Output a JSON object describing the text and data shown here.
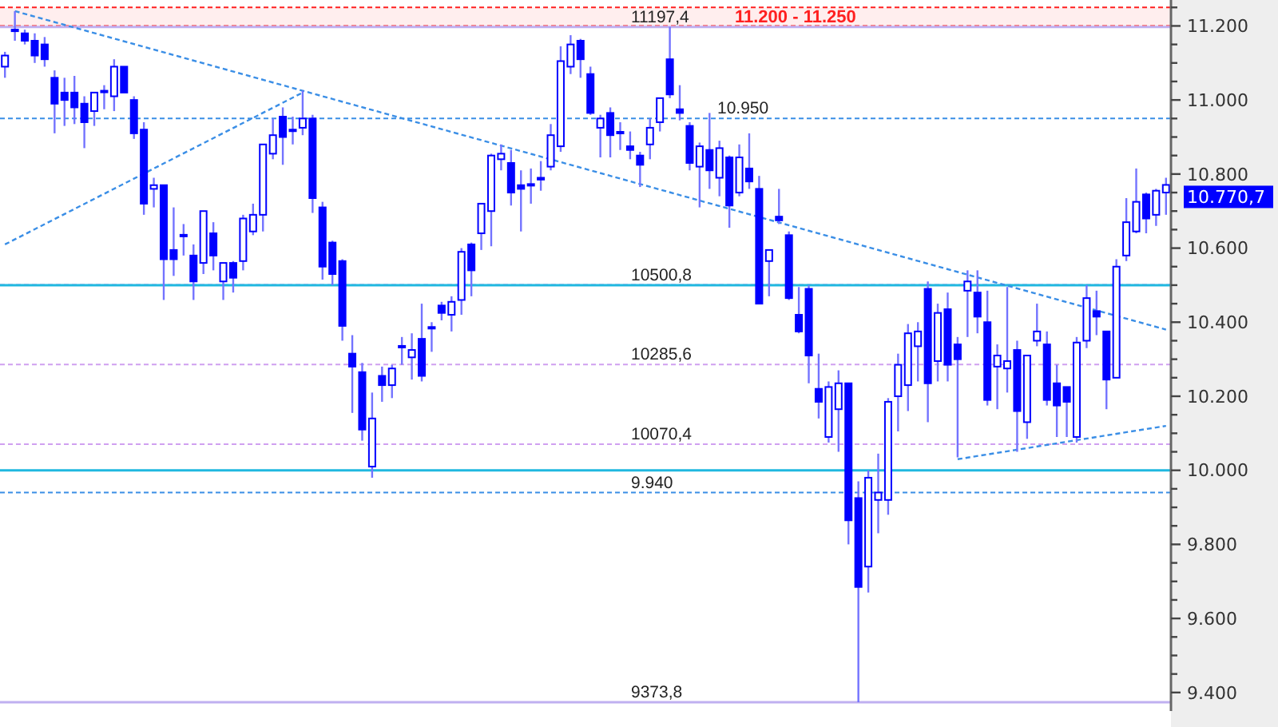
{
  "chart_data": {
    "type": "candlestick",
    "categories": [
      null,
      null,
      null,
      null,
      null,
      null,
      null,
      null,
      null,
      null,
      null,
      null,
      null,
      null,
      null,
      null,
      null,
      null,
      null,
      null,
      null,
      null,
      null,
      null,
      null,
      null,
      null,
      null,
      null,
      null,
      null,
      null,
      null,
      null,
      null,
      null,
      null,
      null,
      null,
      null,
      null,
      null,
      null,
      null,
      null,
      null,
      null,
      null,
      null,
      null,
      null,
      null,
      null,
      null,
      null,
      null,
      null,
      null,
      null,
      null,
      null,
      null,
      null,
      null,
      null,
      null,
      null,
      null,
      null,
      null,
      null,
      null,
      null,
      null,
      null,
      null,
      null,
      null,
      null,
      null,
      null,
      null,
      null,
      null,
      null,
      null,
      null,
      null,
      null,
      null,
      null,
      null,
      null,
      null,
      null,
      null,
      null,
      null,
      null,
      null,
      null,
      null,
      null,
      null,
      null,
      null,
      null,
      null,
      null,
      null,
      null,
      null,
      null,
      null,
      null,
      null,
      null,
      null
    ],
    "ohlc": [
      [
        11090,
        11130,
        11060,
        11120
      ],
      [
        11190,
        11240,
        11160,
        11190
      ],
      [
        11180,
        11190,
        11150,
        11160
      ],
      [
        11160,
        11180,
        11100,
        11120
      ],
      [
        11150,
        11170,
        11090,
        11110
      ],
      [
        11060,
        11080,
        10910,
        10990
      ],
      [
        11020,
        11060,
        10930,
        11000
      ],
      [
        11020,
        11065,
        10935,
        10980
      ],
      [
        10990,
        11010,
        10870,
        10940
      ],
      [
        10970,
        11020,
        10930,
        11020
      ],
      [
        11025,
        11040,
        10975,
        11025
      ],
      [
        11010,
        11110,
        10970,
        11090
      ],
      [
        11090,
        11090,
        11020,
        11020
      ],
      [
        11000,
        11010,
        10895,
        10910
      ],
      [
        10920,
        10940,
        10690,
        10720
      ],
      [
        10760,
        10790,
        10710,
        10770
      ],
      [
        10770,
        10770,
        10460,
        10570
      ],
      [
        10595,
        10710,
        10525,
        10570
      ],
      [
        10636,
        10665,
        10580,
        10636
      ],
      [
        10580,
        10610,
        10460,
        10510
      ],
      [
        10560,
        10700,
        10530,
        10700
      ],
      [
        10640,
        10670,
        10540,
        10580
      ],
      [
        10510,
        10560,
        10460,
        10560
      ],
      [
        10560,
        10565,
        10480,
        10520
      ],
      [
        10565,
        10690,
        10540,
        10680
      ],
      [
        10645,
        10720,
        10635,
        10690
      ],
      [
        10690,
        10880,
        10645,
        10880
      ],
      [
        10855,
        10950,
        10840,
        10905
      ],
      [
        10955,
        10980,
        10825,
        10900
      ],
      [
        10920,
        10955,
        10880,
        10920
      ],
      [
        10925,
        11025,
        10905,
        10950
      ],
      [
        10950,
        10960,
        10695,
        10735
      ],
      [
        10710,
        10725,
        10515,
        10550
      ],
      [
        10615,
        10620,
        10500,
        10530
      ],
      [
        10565,
        10570,
        10350,
        10390
      ],
      [
        10315,
        10365,
        10155,
        10280
      ],
      [
        10265,
        10290,
        10080,
        10110
      ],
      [
        10010,
        10210,
        9980,
        10140
      ],
      [
        10255,
        10280,
        10185,
        10230
      ],
      [
        10230,
        10285,
        10195,
        10275
      ],
      [
        10336,
        10360,
        10285,
        10336
      ],
      [
        10305,
        10370,
        10245,
        10325
      ],
      [
        10355,
        10450,
        10240,
        10255
      ],
      [
        10387,
        10400,
        10320,
        10387
      ],
      [
        10445,
        10455,
        10405,
        10425
      ],
      [
        10420,
        10470,
        10375,
        10455
      ],
      [
        10460,
        10600,
        10420,
        10590
      ],
      [
        10610,
        10615,
        10470,
        10540
      ],
      [
        10640,
        10720,
        10595,
        10720
      ],
      [
        10700,
        10855,
        10605,
        10850
      ],
      [
        10840,
        10880,
        10810,
        10855
      ],
      [
        10830,
        10865,
        10715,
        10750
      ],
      [
        10770,
        10810,
        10645,
        10760
      ],
      [
        10773,
        10815,
        10720,
        10773
      ],
      [
        10790,
        10835,
        10755,
        10785
      ],
      [
        10820,
        10935,
        10810,
        10905
      ],
      [
        10875,
        11145,
        10860,
        11105
      ],
      [
        11090,
        11175,
        11070,
        11150
      ],
      [
        11160,
        11165,
        11060,
        11110
      ],
      [
        11070,
        11090,
        10960,
        10965
      ],
      [
        10925,
        10960,
        10845,
        10950
      ],
      [
        10965,
        10980,
        10845,
        10905
      ],
      [
        10914,
        10940,
        10865,
        10914
      ],
      [
        10875,
        10915,
        10840,
        10865
      ],
      [
        10850,
        10860,
        10765,
        10825
      ],
      [
        10880,
        10950,
        10840,
        10925
      ],
      [
        10940,
        11005,
        10915,
        11005
      ],
      [
        11110,
        11197.4,
        11005,
        11015
      ],
      [
        10975,
        11040,
        10945,
        10965
      ],
      [
        10930,
        10940,
        10810,
        10830
      ],
      [
        10820,
        10885,
        10710,
        10875
      ],
      [
        10865,
        10965,
        10760,
        10810
      ],
      [
        10790,
        10890,
        10740,
        10870
      ],
      [
        10845,
        10850,
        10655,
        10715
      ],
      [
        10750,
        10880,
        10740,
        10845
      ],
      [
        10815,
        10910,
        10760,
        10780
      ],
      [
        10760,
        10795,
        10450,
        10450
      ],
      [
        10565,
        10595,
        10470,
        10595
      ],
      [
        10685,
        10760,
        10665,
        10675
      ],
      [
        10635,
        10645,
        10460,
        10465
      ],
      [
        10420,
        10495,
        10370,
        10375
      ],
      [
        10490,
        10500,
        10235,
        10310
      ],
      [
        10220,
        10315,
        10140,
        10185
      ],
      [
        10090,
        10240,
        10075,
        10225
      ],
      [
        10165,
        10270,
        10050,
        10235
      ],
      [
        10235,
        10235,
        9800,
        9865
      ],
      [
        9925,
        9970,
        9373.8,
        9685
      ],
      [
        9740,
        10000,
        9670,
        9980
      ],
      [
        9920,
        10045,
        9830,
        9940
      ],
      [
        9920,
        10195,
        9880,
        10185
      ],
      [
        10200,
        10315,
        10105,
        10285
      ],
      [
        10230,
        10395,
        10160,
        10370
      ],
      [
        10335,
        10400,
        10240,
        10375
      ],
      [
        10490,
        10510,
        10130,
        10235
      ],
      [
        10295,
        10450,
        10240,
        10425
      ],
      [
        10435,
        10480,
        10240,
        10285
      ],
      [
        10340,
        10360,
        10035,
        10300
      ],
      [
        10485,
        10540,
        10360,
        10510
      ],
      [
        10480,
        10540,
        10370,
        10415
      ],
      [
        10400,
        10485,
        10175,
        10190
      ],
      [
        10280,
        10340,
        10165,
        10310
      ],
      [
        10275,
        10495,
        10210,
        10295
      ],
      [
        10325,
        10350,
        10050,
        10160
      ],
      [
        10130,
        10310,
        10085,
        10310
      ],
      [
        10350,
        10450,
        10335,
        10375
      ],
      [
        10340,
        10375,
        10175,
        10190
      ],
      [
        10235,
        10285,
        10090,
        10175
      ],
      [
        10225,
        10225,
        10090,
        10185
      ],
      [
        10090,
        10360,
        10075,
        10345
      ],
      [
        10350,
        10500,
        10330,
        10465
      ],
      [
        10430,
        10485,
        10365,
        10415
      ],
      [
        10375,
        10375,
        10165,
        10245
      ],
      [
        10250,
        10570,
        10250,
        10550
      ],
      [
        10580,
        10735,
        10565,
        10670
      ],
      [
        10645,
        10815,
        10640,
        10725
      ],
      [
        10745,
        10750,
        10640,
        10680
      ],
      [
        10690,
        10760,
        10660,
        10755
      ],
      [
        10750,
        10790,
        10690,
        10770.7
      ]
    ],
    "series": [
      {
        "type": "line",
        "color": "#3a8ee6",
        "line_style": "dashed",
        "values": [
          null,
          11240,
          null,
          null,
          null,
          null,
          null,
          null,
          null,
          null,
          null,
          null,
          null,
          null,
          null,
          null,
          null,
          null,
          null,
          null,
          null,
          null,
          null,
          null,
          null,
          null,
          null,
          null,
          null,
          null,
          null,
          null,
          null,
          null,
          null,
          null,
          null,
          null,
          null,
          null,
          null,
          null,
          null,
          null,
          null,
          null,
          null,
          null,
          null,
          null,
          null,
          null,
          null,
          null,
          null,
          null,
          null,
          null,
          null,
          null,
          null,
          null,
          null,
          null,
          null,
          null,
          null,
          null,
          null,
          null,
          null,
          null,
          null,
          null,
          null,
          null,
          null,
          null,
          null,
          null,
          null,
          null,
          null,
          null,
          null,
          null,
          null,
          null,
          null,
          null,
          null,
          null,
          null,
          null,
          null,
          null,
          null,
          null,
          null,
          null,
          null,
          null,
          null,
          null,
          null,
          null,
          null,
          null,
          null,
          null,
          null,
          null,
          null,
          null,
          null,
          null,
          null,
          10380
        ]
      },
      {
        "type": "line",
        "color": "#3a8ee6",
        "line_style": "dashed",
        "values": [
          10610,
          null,
          null,
          null,
          null,
          null,
          null,
          null,
          null,
          null,
          null,
          null,
          null,
          null,
          null,
          null,
          null,
          null,
          null,
          null,
          null,
          null,
          null,
          null,
          null,
          null,
          null,
          null,
          null,
          null,
          11020,
          null,
          null,
          null,
          null,
          null,
          null,
          null,
          null,
          null,
          null,
          null,
          null,
          null,
          null,
          null,
          null,
          null,
          null,
          null,
          null,
          null,
          null,
          null,
          null,
          null,
          null,
          null,
          null,
          null,
          null,
          null,
          null,
          null,
          null,
          null,
          null,
          null,
          null,
          null,
          null,
          null,
          null,
          null,
          null,
          null,
          null,
          null,
          null,
          null,
          null,
          null,
          null,
          null,
          null,
          null,
          null,
          null,
          null,
          null,
          null,
          null,
          null,
          null,
          null,
          null,
          null,
          null,
          null,
          null,
          null,
          null,
          null,
          null,
          null,
          null,
          null,
          null,
          null,
          null,
          null,
          null,
          null,
          null,
          null,
          null,
          null,
          null
        ]
      },
      {
        "type": "line",
        "color": "#3a8ee6",
        "line_style": "dashed",
        "values": [
          null,
          null,
          null,
          null,
          null,
          null,
          null,
          null,
          null,
          null,
          null,
          null,
          null,
          null,
          null,
          null,
          null,
          null,
          null,
          null,
          null,
          null,
          null,
          null,
          null,
          null,
          null,
          null,
          null,
          null,
          null,
          null,
          null,
          null,
          null,
          null,
          null,
          null,
          null,
          null,
          null,
          null,
          null,
          null,
          null,
          null,
          null,
          null,
          null,
          null,
          null,
          null,
          null,
          null,
          null,
          null,
          null,
          null,
          null,
          null,
          null,
          null,
          null,
          null,
          null,
          null,
          null,
          null,
          null,
          null,
          null,
          null,
          null,
          null,
          null,
          null,
          null,
          null,
          null,
          null,
          null,
          null,
          null,
          null,
          null,
          null,
          null,
          null,
          null,
          null,
          null,
          null,
          null,
          null,
          null,
          null,
          10030,
          null,
          null,
          null,
          null,
          null,
          null,
          null,
          null,
          null,
          null,
          null,
          null,
          null,
          null,
          null,
          null,
          null,
          null,
          null,
          null,
          10120
        ]
      }
    ],
    "ylim": [
      9350,
      11270
    ],
    "yticks": [
      {
        "value": 9400,
        "label": "9.400"
      },
      {
        "value": 9450,
        "label": null
      },
      {
        "value": 9500,
        "label": null
      },
      {
        "value": 9550,
        "label": null
      },
      {
        "value": 9600,
        "label": "9.600"
      },
      {
        "value": 9650,
        "label": null
      },
      {
        "value": 9700,
        "label": null
      },
      {
        "value": 9750,
        "label": null
      },
      {
        "value": 9800,
        "label": "9.800"
      },
      {
        "value": 9850,
        "label": null
      },
      {
        "value": 9900,
        "label": null
      },
      {
        "value": 9950,
        "label": null
      },
      {
        "value": 10000,
        "label": "10.000"
      },
      {
        "value": 10050,
        "label": null
      },
      {
        "value": 10100,
        "label": null
      },
      {
        "value": 10150,
        "label": null
      },
      {
        "value": 10200,
        "label": "10.200"
      },
      {
        "value": 10250,
        "label": null
      },
      {
        "value": 10300,
        "label": null
      },
      {
        "value": 10350,
        "label": null
      },
      {
        "value": 10400,
        "label": "10.400"
      },
      {
        "value": 10450,
        "label": null
      },
      {
        "value": 10500,
        "label": null
      },
      {
        "value": 10550,
        "label": null
      },
      {
        "value": 10600,
        "label": "10.600"
      },
      {
        "value": 10650,
        "label": null
      },
      {
        "value": 10700,
        "label": null
      },
      {
        "value": 10750,
        "label": null
      },
      {
        "value": 10800,
        "label": "10.800"
      },
      {
        "value": 10850,
        "label": null
      },
      {
        "value": 10900,
        "label": null
      },
      {
        "value": 10950,
        "label": null
      },
      {
        "value": 11000,
        "label": "11.000"
      },
      {
        "value": 11050,
        "label": null
      },
      {
        "value": 11100,
        "label": null
      },
      {
        "value": 11150,
        "label": null
      },
      {
        "value": 11200,
        "label": "11.200"
      },
      {
        "value": 11250,
        "label": null
      }
    ],
    "bands": [
      {
        "axis": "y",
        "from": 11200,
        "to": 11250,
        "label": "11.200 - 11.250",
        "color": "#ff2020"
      }
    ],
    "ref_lines": [
      {
        "axis": "y",
        "value": 11197.4,
        "label": "11197,4",
        "color": "#c0b0f0",
        "line_style": "solid"
      },
      {
        "axis": "y",
        "value": 10950,
        "label": "10.950",
        "color": "#3a8ee6",
        "line_style": "dashed"
      },
      {
        "axis": "y",
        "value": 10500.8,
        "label": "10500,8",
        "color": "#d0a0f0",
        "line_style": "dashed"
      },
      {
        "axis": "y",
        "value": 10285.6,
        "label": "10285,6",
        "color": "#d0a0f0",
        "line_style": "dashed"
      },
      {
        "axis": "y",
        "value": 10070.4,
        "label": "10070,4",
        "color": "#d0a0f0",
        "line_style": "dashed"
      },
      {
        "axis": "y",
        "value": 9940,
        "label": "9.940",
        "color": "#3a8ee6",
        "line_style": "dashed"
      },
      {
        "axis": "y",
        "value": 9373.8,
        "label": "9373,8",
        "color": "#c0b0f0",
        "line_style": "solid"
      },
      {
        "axis": "y",
        "value": 10500,
        "label": null,
        "color": "#20b8e0",
        "line_style": "solid"
      },
      {
        "axis": "y",
        "value": 10000,
        "label": null,
        "color": "#20b8e0",
        "line_style": "solid"
      }
    ],
    "annotations": [
      "10.770,7"
    ],
    "color": "#0000ff"
  }
}
